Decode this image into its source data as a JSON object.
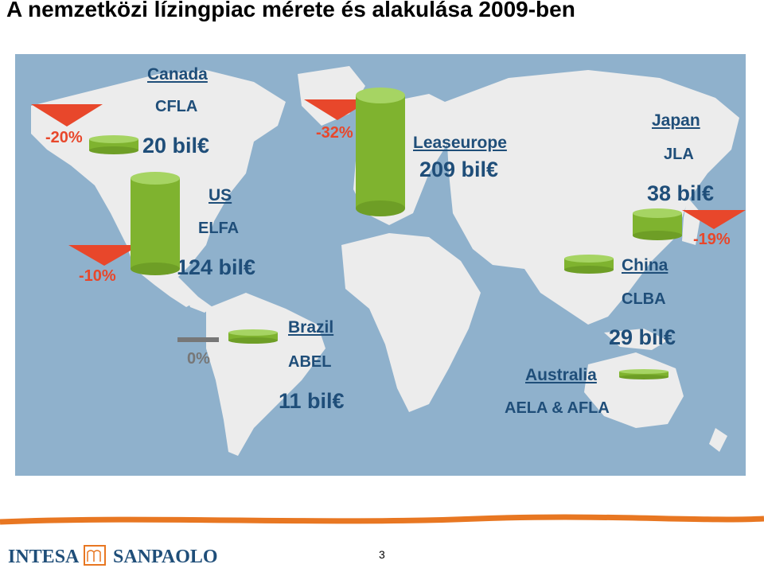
{
  "title": "A nemzetközi lízingpiac mérete és alakulása 2009-ben",
  "colors": {
    "ocean": "#8fb1cc",
    "land": "#ececec",
    "cylinder": "#8dc63f",
    "decline": "#e8472b",
    "flat": "#777777",
    "label": "#1f4e79",
    "footer_line": "#e87722"
  },
  "markets": [
    {
      "region": "Canada",
      "association": "CFLA",
      "volume": "20 bil€",
      "change": "-20%"
    },
    {
      "region": "US",
      "association": "ELFA",
      "volume": "124 bil€",
      "change": "-10%"
    },
    {
      "region": "Leaseurope",
      "association": "",
      "volume": "209 bil€",
      "change": "-32%"
    },
    {
      "region": "Japan",
      "association": "JLA",
      "volume": "38 bil€",
      "change": "-19%"
    },
    {
      "region": "China",
      "association": "CLBA",
      "volume": "29 bil€",
      "change": ""
    },
    {
      "region": "Brazil",
      "association": "ABEL",
      "volume": "11 bil€",
      "change": "0%"
    },
    {
      "region": "Australia",
      "association": "AELA & AFLA",
      "volume": "",
      "change": ""
    }
  ],
  "footer": {
    "logo_left": "INTESA",
    "logo_right": "SANPAOLO",
    "page_number": "3"
  }
}
